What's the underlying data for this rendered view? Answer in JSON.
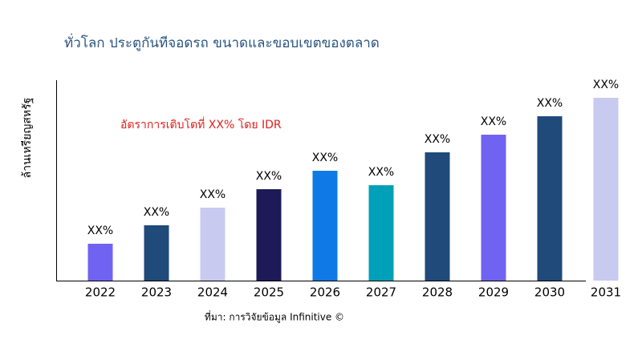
{
  "chart_data": {
    "type": "bar",
    "title": "ทั่วโลก ประตูกันทีจอดรถ ขนาดและขอบเขตของตลาด",
    "y_label": "ล้านเหรียญสหรัฐ",
    "annotation": "อัตราการเติบโตที่ XX% โดย IDR",
    "source": "ที่มา: การวิจัยข้อมูล Infinitive ©",
    "categories": [
      "2022",
      "2023",
      "2024",
      "2025",
      "2026",
      "2027",
      "2028",
      "2029",
      "2030",
      "2031"
    ],
    "values": [
      46,
      69,
      91,
      114,
      137,
      119,
      160,
      182,
      205,
      228
    ],
    "value_labels": [
      "XX%",
      "XX%",
      "XX%",
      "XX%",
      "XX%",
      "XX%",
      "XX%",
      "XX%",
      "XX%",
      "XX%"
    ],
    "colors": [
      "#7163f2",
      "#1f4a7a",
      "#c9caf0",
      "#1e1a58",
      "#0f7ae6",
      "#00a1b8",
      "#1f4a7a",
      "#7163f2",
      "#1f4a7a",
      "#c9caf0"
    ],
    "ylim": [
      0,
      250
    ]
  }
}
